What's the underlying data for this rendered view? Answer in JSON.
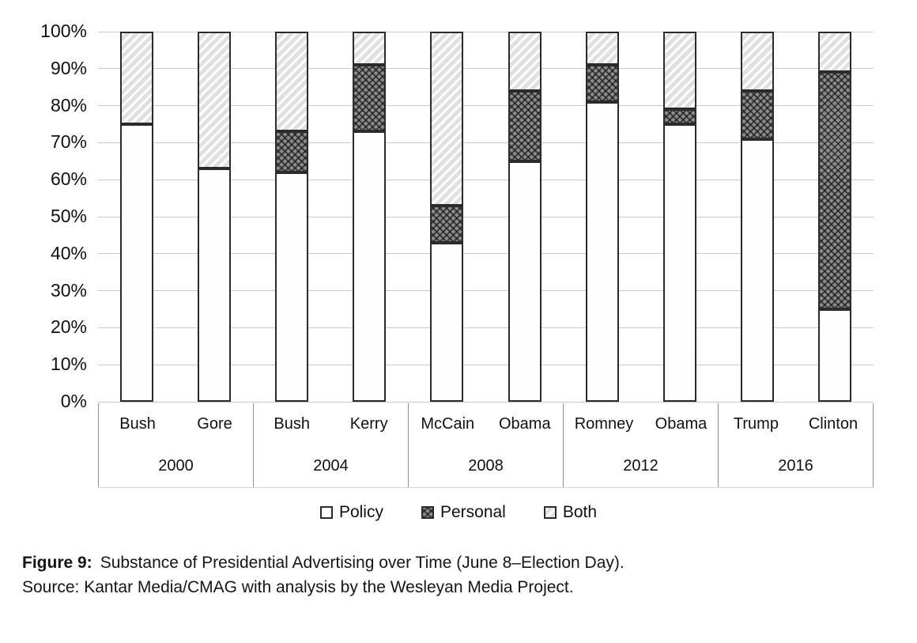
{
  "figure": {
    "caption_label": "Figure 9:",
    "caption_text": "Substance of Presidential Advertising over Time (June 8–Election Day).",
    "source_text": "Source: Kantar Media/CMAG with analysis by the Wesleyan Media Project."
  },
  "legend": {
    "items": [
      {
        "label": "Policy",
        "swatch": "policy"
      },
      {
        "label": "Personal",
        "swatch": "personal"
      },
      {
        "label": "Both",
        "swatch": "both"
      }
    ]
  },
  "colors": {
    "bar_border": "#2b2b2b",
    "gridline": "#c9c9c9",
    "policy_fill": "#fefefe",
    "personal_fill": "#8d8d8d",
    "both_fill": "#e0e0e0",
    "text": "#1a1a1a"
  },
  "chart_data": {
    "type": "bar",
    "stacked": true,
    "ylim": [
      0,
      100
    ],
    "grid": true,
    "legend_position": "bottom",
    "yticks": [
      0,
      10,
      20,
      30,
      40,
      50,
      60,
      70,
      80,
      90,
      100
    ],
    "ytick_suffix": "%",
    "categories": [
      "Bush",
      "Gore",
      "Bush",
      "Kerry",
      "McCain",
      "Obama",
      "Romney",
      "Obama",
      "Trump",
      "Clinton"
    ],
    "groups": [
      {
        "year": "2000",
        "candidates": [
          "Bush",
          "Gore"
        ]
      },
      {
        "year": "2004",
        "candidates": [
          "Bush",
          "Kerry"
        ]
      },
      {
        "year": "2008",
        "candidates": [
          "McCain",
          "Obama"
        ]
      },
      {
        "year": "2012",
        "candidates": [
          "Romney",
          "Obama"
        ]
      },
      {
        "year": "2016",
        "candidates": [
          "Trump",
          "Clinton"
        ]
      }
    ],
    "series": [
      {
        "name": "Policy",
        "values": [
          75,
          63,
          62,
          73,
          43,
          65,
          81,
          75,
          71,
          25
        ]
      },
      {
        "name": "Personal",
        "values": [
          0,
          0,
          11,
          18,
          10,
          19,
          10,
          4,
          13,
          64
        ]
      },
      {
        "name": "Both",
        "values": [
          25,
          37,
          27,
          9,
          47,
          16,
          9,
          21,
          16,
          11
        ]
      }
    ]
  }
}
